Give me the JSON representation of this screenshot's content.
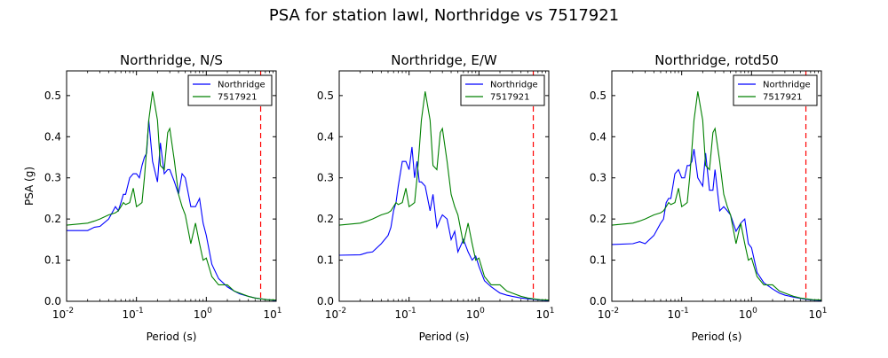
{
  "figure_title": "PSA for station lawl, Northridge vs 7517921",
  "chart_data": [
    {
      "type": "line",
      "title": "Northridge, N/S",
      "xlabel": "Period (s)",
      "ylabel": "PSA (g)",
      "xscale": "log",
      "xlim": [
        0.01,
        10
      ],
      "ylim": [
        0,
        0.56
      ],
      "xticks": [
        {
          "base": "10",
          "exp": "-2"
        },
        {
          "base": "10",
          "exp": "-1"
        },
        {
          "base": "10",
          "exp": "0"
        },
        {
          "base": "10",
          "exp": "1"
        }
      ],
      "yticks": [
        "0.0",
        "0.1",
        "0.2",
        "0.3",
        "0.4",
        "0.5"
      ],
      "legend_position": "top-right",
      "vline": {
        "x": 6.0,
        "color": "#ff0000",
        "style": "dashed"
      },
      "series": [
        {
          "name": "Northridge",
          "color": "#0000ff",
          "x": [
            0.01,
            0.02,
            0.025,
            0.03,
            0.04,
            0.05,
            0.055,
            0.06,
            0.065,
            0.07,
            0.08,
            0.09,
            0.1,
            0.11,
            0.12,
            0.13,
            0.14,
            0.15,
            0.17,
            0.2,
            0.22,
            0.25,
            0.28,
            0.3,
            0.35,
            0.4,
            0.45,
            0.5,
            0.6,
            0.7,
            0.8,
            0.9,
            1.0,
            1.2,
            1.5,
            2.0,
            2.5,
            3.0,
            4.0,
            5.0,
            6.0,
            7.5,
            10.0
          ],
          "y": [
            0.172,
            0.172,
            0.18,
            0.182,
            0.2,
            0.23,
            0.22,
            0.24,
            0.26,
            0.26,
            0.3,
            0.31,
            0.31,
            0.3,
            0.33,
            0.35,
            0.36,
            0.44,
            0.34,
            0.29,
            0.385,
            0.31,
            0.32,
            0.32,
            0.29,
            0.26,
            0.31,
            0.3,
            0.23,
            0.23,
            0.25,
            0.19,
            0.16,
            0.09,
            0.055,
            0.035,
            0.025,
            0.018,
            0.012,
            0.008,
            0.006,
            0.004,
            0.002
          ]
        },
        {
          "name": "7517921",
          "color": "#008000",
          "x": [
            0.01,
            0.02,
            0.025,
            0.03,
            0.04,
            0.05,
            0.055,
            0.06,
            0.065,
            0.07,
            0.08,
            0.09,
            0.1,
            0.11,
            0.12,
            0.13,
            0.14,
            0.15,
            0.17,
            0.2,
            0.22,
            0.25,
            0.28,
            0.3,
            0.35,
            0.4,
            0.45,
            0.5,
            0.6,
            0.7,
            0.8,
            0.9,
            1.0,
            1.2,
            1.5,
            2.0,
            2.5,
            3.0,
            4.0,
            5.0,
            6.0,
            7.5,
            10.0
          ],
          "y": [
            0.185,
            0.19,
            0.195,
            0.2,
            0.21,
            0.215,
            0.22,
            0.23,
            0.24,
            0.235,
            0.24,
            0.275,
            0.23,
            0.235,
            0.24,
            0.3,
            0.37,
            0.44,
            0.51,
            0.44,
            0.33,
            0.32,
            0.41,
            0.42,
            0.34,
            0.26,
            0.23,
            0.21,
            0.14,
            0.19,
            0.14,
            0.1,
            0.105,
            0.06,
            0.04,
            0.04,
            0.025,
            0.02,
            0.012,
            0.008,
            0.006,
            0.004,
            0.003
          ]
        }
      ]
    },
    {
      "type": "line",
      "title": "Northridge, E/W",
      "xlabel": "Period (s)",
      "ylabel": "",
      "xscale": "log",
      "xlim": [
        0.01,
        10
      ],
      "ylim": [
        0,
        0.56
      ],
      "xticks": [
        {
          "base": "10",
          "exp": "-2"
        },
        {
          "base": "10",
          "exp": "-1"
        },
        {
          "base": "10",
          "exp": "0"
        },
        {
          "base": "10",
          "exp": "1"
        }
      ],
      "yticks": [
        "0.0",
        "0.1",
        "0.2",
        "0.3",
        "0.4",
        "0.5"
      ],
      "legend_position": "top-right",
      "vline": {
        "x": 6.0,
        "color": "#ff0000",
        "style": "dashed"
      },
      "series": [
        {
          "name": "Northridge",
          "color": "#0000ff",
          "x": [
            0.01,
            0.02,
            0.025,
            0.03,
            0.04,
            0.05,
            0.055,
            0.06,
            0.065,
            0.07,
            0.08,
            0.09,
            0.1,
            0.11,
            0.12,
            0.13,
            0.14,
            0.15,
            0.17,
            0.2,
            0.22,
            0.25,
            0.28,
            0.3,
            0.35,
            0.4,
            0.45,
            0.5,
            0.6,
            0.7,
            0.8,
            0.9,
            1.0,
            1.2,
            1.5,
            2.0,
            2.5,
            3.0,
            4.0,
            5.0,
            6.0,
            7.5,
            10.0
          ],
          "y": [
            0.112,
            0.113,
            0.118,
            0.12,
            0.14,
            0.16,
            0.18,
            0.22,
            0.24,
            0.28,
            0.34,
            0.34,
            0.32,
            0.375,
            0.3,
            0.34,
            0.29,
            0.29,
            0.28,
            0.22,
            0.26,
            0.18,
            0.2,
            0.21,
            0.2,
            0.15,
            0.17,
            0.12,
            0.15,
            0.12,
            0.1,
            0.11,
            0.085,
            0.05,
            0.035,
            0.02,
            0.015,
            0.012,
            0.008,
            0.006,
            0.005,
            0.003,
            0.002
          ]
        },
        {
          "name": "7517921",
          "color": "#008000",
          "x": [
            0.01,
            0.02,
            0.025,
            0.03,
            0.04,
            0.05,
            0.055,
            0.06,
            0.065,
            0.07,
            0.08,
            0.09,
            0.1,
            0.11,
            0.12,
            0.13,
            0.14,
            0.15,
            0.17,
            0.2,
            0.22,
            0.25,
            0.28,
            0.3,
            0.35,
            0.4,
            0.45,
            0.5,
            0.6,
            0.7,
            0.8,
            0.9,
            1.0,
            1.2,
            1.5,
            2.0,
            2.5,
            3.0,
            4.0,
            5.0,
            6.0,
            7.5,
            10.0
          ],
          "y": [
            0.185,
            0.19,
            0.195,
            0.2,
            0.21,
            0.215,
            0.22,
            0.23,
            0.24,
            0.235,
            0.24,
            0.275,
            0.23,
            0.235,
            0.24,
            0.3,
            0.37,
            0.44,
            0.51,
            0.44,
            0.33,
            0.32,
            0.41,
            0.42,
            0.34,
            0.26,
            0.23,
            0.21,
            0.14,
            0.19,
            0.14,
            0.1,
            0.105,
            0.06,
            0.04,
            0.04,
            0.025,
            0.02,
            0.012,
            0.008,
            0.006,
            0.004,
            0.003
          ]
        }
      ]
    },
    {
      "type": "line",
      "title": "Northridge, rotd50",
      "xlabel": "Period (s)",
      "ylabel": "",
      "xscale": "log",
      "xlim": [
        0.01,
        10
      ],
      "ylim": [
        0,
        0.56
      ],
      "xticks": [
        {
          "base": "10",
          "exp": "-2"
        },
        {
          "base": "10",
          "exp": "-1"
        },
        {
          "base": "10",
          "exp": "0"
        },
        {
          "base": "10",
          "exp": "1"
        }
      ],
      "yticks": [
        "0.0",
        "0.1",
        "0.2",
        "0.3",
        "0.4",
        "0.5"
      ],
      "legend_position": "top-right",
      "vline": {
        "x": 6.0,
        "color": "#ff0000",
        "style": "dashed"
      },
      "series": [
        {
          "name": "Northridge",
          "color": "#0000ff",
          "x": [
            0.01,
            0.02,
            0.025,
            0.03,
            0.04,
            0.05,
            0.055,
            0.06,
            0.065,
            0.07,
            0.08,
            0.09,
            0.1,
            0.11,
            0.12,
            0.13,
            0.14,
            0.15,
            0.17,
            0.2,
            0.22,
            0.25,
            0.28,
            0.3,
            0.35,
            0.4,
            0.45,
            0.5,
            0.6,
            0.7,
            0.8,
            0.9,
            1.0,
            1.2,
            1.5,
            2.0,
            2.5,
            3.0,
            4.0,
            5.0,
            6.0,
            7.5,
            10.0
          ],
          "y": [
            0.138,
            0.14,
            0.145,
            0.14,
            0.16,
            0.19,
            0.2,
            0.24,
            0.25,
            0.25,
            0.31,
            0.32,
            0.3,
            0.3,
            0.33,
            0.33,
            0.34,
            0.37,
            0.3,
            0.28,
            0.36,
            0.27,
            0.27,
            0.32,
            0.22,
            0.23,
            0.22,
            0.21,
            0.17,
            0.19,
            0.2,
            0.14,
            0.13,
            0.07,
            0.045,
            0.03,
            0.02,
            0.015,
            0.01,
            0.007,
            0.005,
            0.003,
            0.002
          ]
        },
        {
          "name": "7517921",
          "color": "#008000",
          "x": [
            0.01,
            0.02,
            0.025,
            0.03,
            0.04,
            0.05,
            0.055,
            0.06,
            0.065,
            0.07,
            0.08,
            0.09,
            0.1,
            0.11,
            0.12,
            0.13,
            0.14,
            0.15,
            0.17,
            0.2,
            0.22,
            0.25,
            0.28,
            0.3,
            0.35,
            0.4,
            0.45,
            0.5,
            0.6,
            0.7,
            0.8,
            0.9,
            1.0,
            1.2,
            1.5,
            2.0,
            2.5,
            3.0,
            4.0,
            5.0,
            6.0,
            7.5,
            10.0
          ],
          "y": [
            0.185,
            0.19,
            0.195,
            0.2,
            0.21,
            0.215,
            0.22,
            0.23,
            0.24,
            0.235,
            0.24,
            0.275,
            0.23,
            0.235,
            0.24,
            0.3,
            0.37,
            0.44,
            0.51,
            0.44,
            0.33,
            0.32,
            0.41,
            0.42,
            0.34,
            0.26,
            0.23,
            0.21,
            0.14,
            0.19,
            0.14,
            0.1,
            0.105,
            0.06,
            0.04,
            0.04,
            0.025,
            0.02,
            0.012,
            0.008,
            0.006,
            0.004,
            0.003
          ]
        }
      ]
    }
  ]
}
